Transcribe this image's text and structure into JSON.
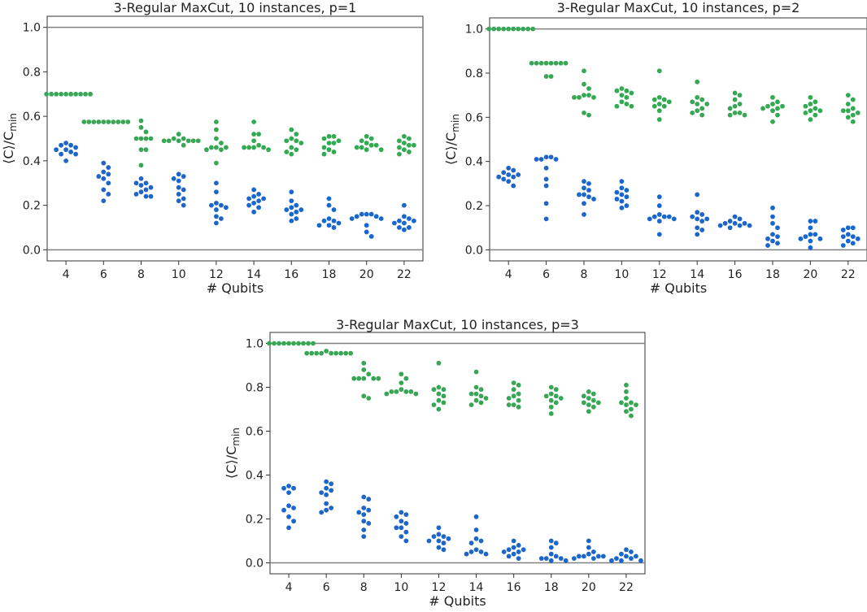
{
  "chart_data": [
    {
      "type": "scatter",
      "title": "3-Regular MaxCut, 10 instances, p=1",
      "xlabel": "# Qubits",
      "ylabel": "⟨C⟩/C",
      "ylabel_sub": "min",
      "categories": [
        "4",
        "6",
        "8",
        "10",
        "12",
        "14",
        "16",
        "18",
        "20",
        "22"
      ],
      "xticks": [
        "4",
        "6",
        "8",
        "10",
        "12",
        "14",
        "16",
        "18",
        "20",
        "22"
      ],
      "yticks": [
        "0.0",
        "0.2",
        "0.4",
        "0.6",
        "0.8",
        "1.0"
      ],
      "ylim": [
        -0.05,
        1.05
      ],
      "reference_lines": [
        0,
        1
      ],
      "colors": {
        "green": "#34a853",
        "blue": "#1a66cc",
        "refline": "#808080"
      },
      "series": [
        {
          "color": "green",
          "values": [
            [
              0.7,
              0.7,
              0.7,
              0.7,
              0.7,
              0.7,
              0.7,
              0.7,
              0.7,
              0.7
            ],
            [
              0.575,
              0.575,
              0.575,
              0.575,
              0.575,
              0.575,
              0.575,
              0.575,
              0.575,
              0.575
            ],
            [
              0.58,
              0.55,
              0.53,
              0.5,
              0.5,
              0.5,
              0.5,
              0.45,
              0.45,
              0.38
            ],
            [
              0.52,
              0.5,
              0.5,
              0.49,
              0.49,
              0.49,
              0.49,
              0.49,
              0.49,
              0.47
            ],
            [
              0.575,
              0.54,
              0.5,
              0.48,
              0.46,
              0.46,
              0.46,
              0.45,
              0.45,
              0.39
            ],
            [
              0.575,
              0.52,
              0.52,
              0.49,
              0.47,
              0.46,
              0.46,
              0.46,
              0.46,
              0.45
            ],
            [
              0.54,
              0.52,
              0.5,
              0.49,
              0.49,
              0.48,
              0.46,
              0.45,
              0.44,
              0.43
            ],
            [
              0.51,
              0.51,
              0.5,
              0.49,
              0.48,
              0.48,
              0.46,
              0.45,
              0.44,
              0.43
            ],
            [
              0.51,
              0.5,
              0.49,
              0.48,
              0.47,
              0.47,
              0.46,
              0.46,
              0.45,
              0.45
            ],
            [
              0.51,
              0.5,
              0.49,
              0.48,
              0.47,
              0.47,
              0.46,
              0.45,
              0.44,
              0.43
            ]
          ]
        },
        {
          "color": "blue",
          "values": [
            [
              0.48,
              0.47,
              0.47,
              0.46,
              0.45,
              0.45,
              0.44,
              0.43,
              0.43,
              0.4
            ],
            [
              0.39,
              0.37,
              0.35,
              0.34,
              0.33,
              0.32,
              0.3,
              0.27,
              0.25,
              0.22
            ],
            [
              0.32,
              0.3,
              0.3,
              0.29,
              0.28,
              0.27,
              0.26,
              0.25,
              0.24,
              0.24
            ],
            [
              0.34,
              0.33,
              0.32,
              0.31,
              0.28,
              0.27,
              0.25,
              0.23,
              0.22,
              0.2
            ],
            [
              0.3,
              0.26,
              0.21,
              0.2,
              0.2,
              0.19,
              0.18,
              0.15,
              0.14,
              0.12
            ],
            [
              0.27,
              0.25,
              0.24,
              0.23,
              0.23,
              0.22,
              0.21,
              0.2,
              0.19,
              0.17
            ],
            [
              0.26,
              0.22,
              0.2,
              0.19,
              0.18,
              0.18,
              0.17,
              0.16,
              0.14,
              0.13
            ],
            [
              0.23,
              0.2,
              0.18,
              0.14,
              0.13,
              0.13,
              0.12,
              0.11,
              0.11,
              0.1
            ],
            [
              0.16,
              0.16,
              0.16,
              0.15,
              0.15,
              0.14,
              0.14,
              0.11,
              0.08,
              0.06
            ],
            [
              0.2,
              0.15,
              0.14,
              0.13,
              0.13,
              0.12,
              0.12,
              0.1,
              0.1,
              0.09
            ]
          ]
        }
      ]
    },
    {
      "type": "scatter",
      "title": "3-Regular MaxCut, 10 instances, p=2",
      "xlabel": "# Qubits",
      "ylabel": "⟨C⟩/C",
      "ylabel_sub": "min",
      "categories": [
        "4",
        "6",
        "8",
        "10",
        "12",
        "14",
        "16",
        "18",
        "20",
        "22"
      ],
      "xticks": [
        "4",
        "6",
        "8",
        "10",
        "12",
        "14",
        "16",
        "18",
        "20",
        "22"
      ],
      "yticks": [
        "0.0",
        "0.2",
        "0.4",
        "0.6",
        "0.8",
        "1.0"
      ],
      "ylim": [
        -0.05,
        1.05
      ],
      "reference_lines": [
        0,
        1
      ],
      "colors": {
        "green": "#34a853",
        "blue": "#1a66cc",
        "refline": "#808080"
      },
      "series": [
        {
          "color": "green",
          "values": [
            [
              1.0,
              1.0,
              1.0,
              1.0,
              1.0,
              1.0,
              1.0,
              1.0,
              1.0,
              1.0
            ],
            [
              0.845,
              0.845,
              0.845,
              0.845,
              0.845,
              0.845,
              0.845,
              0.845,
              0.785,
              0.785
            ],
            [
              0.81,
              0.75,
              0.73,
              0.7,
              0.7,
              0.69,
              0.69,
              0.69,
              0.62,
              0.61
            ],
            [
              0.73,
              0.72,
              0.72,
              0.71,
              0.7,
              0.69,
              0.67,
              0.66,
              0.65,
              0.65
            ],
            [
              0.81,
              0.69,
              0.68,
              0.68,
              0.67,
              0.66,
              0.65,
              0.65,
              0.63,
              0.59
            ],
            [
              0.76,
              0.69,
              0.68,
              0.67,
              0.66,
              0.66,
              0.64,
              0.63,
              0.62,
              0.61
            ],
            [
              0.71,
              0.7,
              0.68,
              0.66,
              0.65,
              0.64,
              0.62,
              0.62,
              0.61,
              0.61
            ],
            [
              0.69,
              0.67,
              0.66,
              0.65,
              0.65,
              0.64,
              0.64,
              0.63,
              0.61,
              0.58
            ],
            [
              0.69,
              0.67,
              0.66,
              0.65,
              0.64,
              0.63,
              0.63,
              0.62,
              0.61,
              0.59
            ],
            [
              0.7,
              0.68,
              0.66,
              0.64,
              0.63,
              0.63,
              0.62,
              0.61,
              0.6,
              0.58
            ]
          ]
        },
        {
          "color": "blue",
          "values": [
            [
              0.37,
              0.36,
              0.35,
              0.34,
              0.34,
              0.33,
              0.33,
              0.32,
              0.31,
              0.29
            ],
            [
              0.42,
              0.42,
              0.41,
              0.41,
              0.41,
              0.37,
              0.32,
              0.29,
              0.21,
              0.14
            ],
            [
              0.31,
              0.3,
              0.28,
              0.27,
              0.25,
              0.25,
              0.24,
              0.23,
              0.21,
              0.16
            ],
            [
              0.31,
              0.28,
              0.27,
              0.26,
              0.25,
              0.24,
              0.23,
              0.22,
              0.2,
              0.19
            ],
            [
              0.24,
              0.2,
              0.16,
              0.15,
              0.15,
              0.15,
              0.14,
              0.14,
              0.13,
              0.07
            ],
            [
              0.25,
              0.17,
              0.16,
              0.15,
              0.14,
              0.14,
              0.13,
              0.1,
              0.09,
              0.07
            ],
            [
              0.15,
              0.14,
              0.13,
              0.12,
              0.12,
              0.12,
              0.11,
              0.11,
              0.11,
              0.1
            ],
            [
              0.19,
              0.15,
              0.12,
              0.1,
              0.07,
              0.06,
              0.05,
              0.04,
              0.03,
              0.02
            ],
            [
              0.13,
              0.13,
              0.1,
              0.07,
              0.07,
              0.06,
              0.05,
              0.05,
              0.04,
              0.01
            ],
            [
              0.1,
              0.1,
              0.09,
              0.07,
              0.06,
              0.06,
              0.05,
              0.04,
              0.03,
              0.02
            ]
          ]
        }
      ]
    },
    {
      "type": "scatter",
      "title": "3-Regular MaxCut, 10 instances, p=3",
      "xlabel": "# Qubits",
      "ylabel": "⟨C⟩/C",
      "ylabel_sub": "min",
      "categories": [
        "4",
        "6",
        "8",
        "10",
        "12",
        "14",
        "16",
        "18",
        "20",
        "22"
      ],
      "xticks": [
        "4",
        "6",
        "8",
        "10",
        "12",
        "14",
        "16",
        "18",
        "20",
        "22"
      ],
      "yticks": [
        "0.0",
        "0.2",
        "0.4",
        "0.6",
        "0.8",
        "1.0"
      ],
      "ylim": [
        -0.05,
        1.05
      ],
      "reference_lines": [
        0,
        1
      ],
      "colors": {
        "green": "#34a853",
        "blue": "#1a66cc",
        "refline": "#808080"
      },
      "series": [
        {
          "color": "green",
          "values": [
            [
              1.0,
              1.0,
              1.0,
              1.0,
              1.0,
              1.0,
              1.0,
              1.0,
              1.0,
              1.0
            ],
            [
              0.965,
              0.955,
              0.955,
              0.955,
              0.955,
              0.955,
              0.955,
              0.955,
              0.955,
              0.955
            ],
            [
              0.91,
              0.88,
              0.86,
              0.84,
              0.84,
              0.84,
              0.84,
              0.84,
              0.76,
              0.75
            ],
            [
              0.86,
              0.84,
              0.82,
              0.79,
              0.78,
              0.78,
              0.78,
              0.78,
              0.77,
              0.77
            ],
            [
              0.91,
              0.8,
              0.79,
              0.79,
              0.77,
              0.76,
              0.74,
              0.73,
              0.72,
              0.7
            ],
            [
              0.87,
              0.8,
              0.79,
              0.77,
              0.77,
              0.76,
              0.75,
              0.74,
              0.73,
              0.72
            ],
            [
              0.82,
              0.81,
              0.79,
              0.77,
              0.76,
              0.75,
              0.74,
              0.72,
              0.72,
              0.71
            ],
            [
              0.8,
              0.79,
              0.77,
              0.76,
              0.76,
              0.75,
              0.74,
              0.73,
              0.71,
              0.68
            ],
            [
              0.78,
              0.77,
              0.76,
              0.75,
              0.74,
              0.73,
              0.73,
              0.72,
              0.71,
              0.69
            ],
            [
              0.81,
              0.78,
              0.75,
              0.73,
              0.73,
              0.72,
              0.72,
              0.7,
              0.69,
              0.67
            ]
          ]
        },
        {
          "color": "blue",
          "values": [
            [
              0.35,
              0.34,
              0.34,
              0.32,
              0.26,
              0.25,
              0.24,
              0.21,
              0.19,
              0.16
            ],
            [
              0.37,
              0.36,
              0.34,
              0.33,
              0.32,
              0.31,
              0.27,
              0.25,
              0.24,
              0.23
            ],
            [
              0.3,
              0.29,
              0.25,
              0.24,
              0.23,
              0.22,
              0.19,
              0.18,
              0.15,
              0.12
            ],
            [
              0.23,
              0.22,
              0.21,
              0.19,
              0.18,
              0.16,
              0.16,
              0.14,
              0.12,
              0.1
            ],
            [
              0.16,
              0.13,
              0.12,
              0.12,
              0.11,
              0.1,
              0.1,
              0.09,
              0.07,
              0.06
            ],
            [
              0.21,
              0.15,
              0.11,
              0.1,
              0.09,
              0.06,
              0.05,
              0.05,
              0.04,
              0.04
            ],
            [
              0.1,
              0.08,
              0.07,
              0.06,
              0.06,
              0.05,
              0.05,
              0.04,
              0.03,
              0.02
            ],
            [
              0.1,
              0.09,
              0.07,
              0.04,
              0.03,
              0.02,
              0.02,
              0.02,
              0.01,
              0.01
            ],
            [
              0.1,
              0.07,
              0.05,
              0.04,
              0.03,
              0.03,
              0.03,
              0.03,
              0.02,
              0.02
            ],
            [
              0.06,
              0.05,
              0.04,
              0.03,
              0.03,
              0.02,
              0.02,
              0.01,
              0.01,
              0.01
            ]
          ]
        }
      ]
    }
  ]
}
